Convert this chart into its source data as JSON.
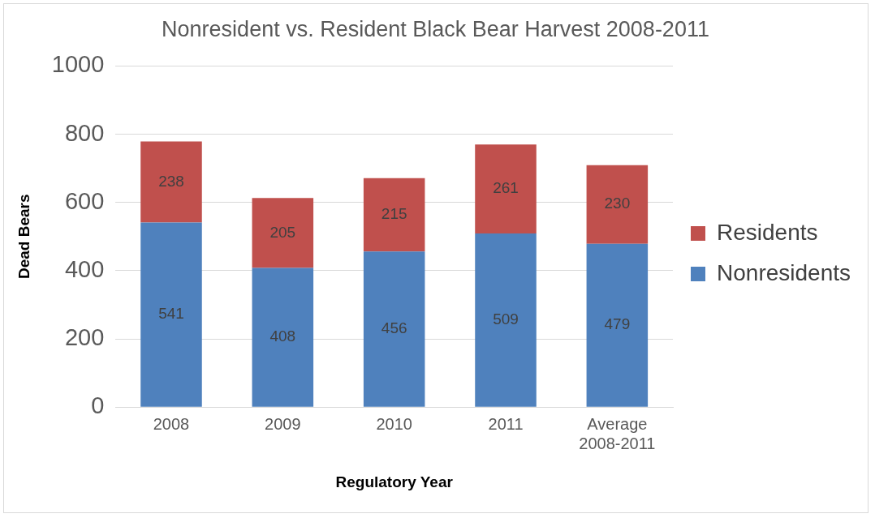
{
  "chart_data": {
    "type": "bar",
    "title": "Nonresident vs. Resident Black Bear Harvest 2008-2011",
    "xlabel": "Regulatory Year",
    "ylabel": "Dead Bears",
    "categories": [
      "2008",
      "2009",
      "2010",
      "2011",
      "Average 2008-2011"
    ],
    "series": [
      {
        "name": "Nonresidents",
        "color": "#4f81bd",
        "values": [
          541,
          408,
          456,
          509,
          479
        ]
      },
      {
        "name": "Residents",
        "color": "#c0504d",
        "values": [
          238,
          205,
          215,
          261,
          230
        ]
      }
    ],
    "stacked": true,
    "ylim": [
      0,
      1000
    ],
    "yticks": [
      0,
      200,
      400,
      600,
      800,
      1000
    ],
    "grid": "y",
    "legend": "right",
    "data_labels": true
  }
}
